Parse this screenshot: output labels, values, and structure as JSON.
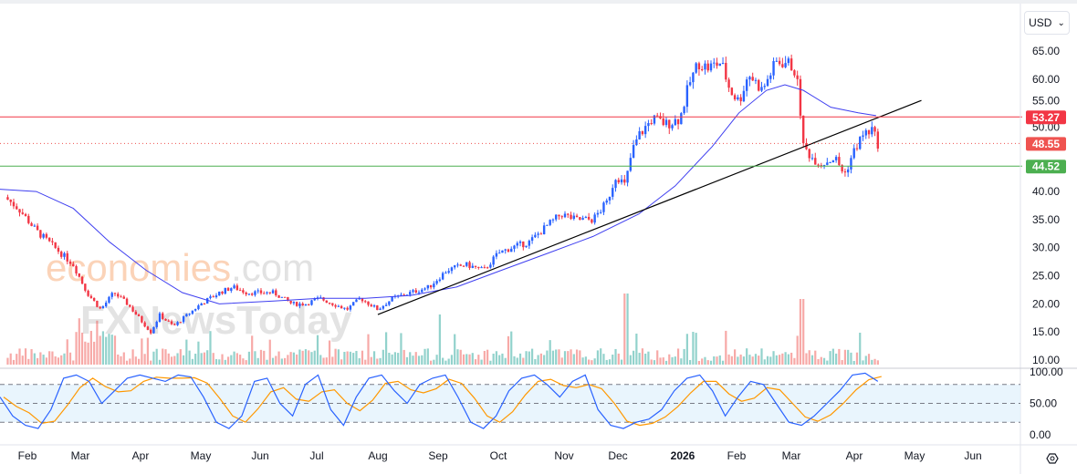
{
  "currency": {
    "label": "USD",
    "chevron": "⌄"
  },
  "watermark": {
    "line1": "economies",
    "line1b": ".com",
    "line2": "FXNewsToday"
  },
  "chart_data": {
    "type": "candlestick",
    "x_unit": "months since Feb 1 2025",
    "price_axis": {
      "ticks": [
        "65.00",
        "60.00",
        "55.00",
        "50.00",
        "40.00",
        "35.00",
        "30.00",
        "25.00",
        "20.00",
        "15.00",
        "10.00"
      ],
      "ylim": [
        10,
        65
      ]
    },
    "time_axis": {
      "labels": [
        "Feb",
        "Mar",
        "Apr",
        "May",
        "Jun",
        "Jul",
        "Aug",
        "Sep",
        "Oct",
        "Nov",
        "Dec",
        "2026",
        "Feb",
        "Mar",
        "Apr",
        "May",
        "Jun"
      ]
    },
    "close_path": [
      [
        -0.38,
        39
      ],
      [
        -0.15,
        37
      ],
      [
        0.15,
        33
      ],
      [
        0.46,
        30
      ],
      [
        0.77,
        27
      ],
      [
        1.0,
        22
      ],
      [
        1.23,
        19
      ],
      [
        1.45,
        22
      ],
      [
        1.68,
        20
      ],
      [
        1.91,
        17
      ],
      [
        2.07,
        15
      ],
      [
        2.22,
        18
      ],
      [
        2.45,
        16
      ],
      [
        2.68,
        18
      ],
      [
        2.91,
        20
      ],
      [
        3.22,
        22
      ],
      [
        3.45,
        23
      ],
      [
        3.68,
        22
      ],
      [
        3.9,
        22
      ],
      [
        4.13,
        22
      ],
      [
        4.44,
        20
      ],
      [
        4.67,
        20
      ],
      [
        4.9,
        21
      ],
      [
        5.13,
        20
      ],
      [
        5.36,
        19
      ],
      [
        5.59,
        21
      ],
      [
        5.88,
        19
      ],
      [
        6.13,
        21
      ],
      [
        6.43,
        22
      ],
      [
        6.74,
        23
      ],
      [
        7.04,
        26
      ],
      [
        7.35,
        27
      ],
      [
        7.66,
        26
      ],
      [
        7.9,
        29
      ],
      [
        8.12,
        30
      ],
      [
        8.42,
        31
      ],
      [
        8.73,
        34
      ],
      [
        8.96,
        36
      ],
      [
        9.19,
        35
      ],
      [
        9.49,
        35
      ],
      [
        9.72,
        38
      ],
      [
        9.88,
        43
      ],
      [
        10.03,
        41
      ],
      [
        10.14,
        47
      ],
      [
        10.26,
        50
      ],
      [
        10.49,
        53
      ],
      [
        10.72,
        52
      ],
      [
        10.95,
        53
      ],
      [
        11.1,
        59
      ],
      [
        11.26,
        63
      ],
      [
        11.41,
        62
      ],
      [
        11.64,
        63
      ],
      [
        11.79,
        58
      ],
      [
        11.94,
        56
      ],
      [
        12.1,
        61
      ],
      [
        12.33,
        58
      ],
      [
        12.56,
        63
      ],
      [
        12.74,
        63
      ],
      [
        12.86,
        62
      ],
      [
        12.94,
        58
      ],
      [
        13.02,
        48
      ],
      [
        13.17,
        46
      ],
      [
        13.32,
        45
      ],
      [
        13.55,
        46
      ],
      [
        13.71,
        43
      ],
      [
        13.86,
        47
      ],
      [
        14.01,
        50
      ],
      [
        14.17,
        51
      ],
      [
        14.27,
        48.55
      ]
    ],
    "moving_average": [
      [
        -0.46,
        40.4
      ],
      [
        0.15,
        40
      ],
      [
        0.77,
        37
      ],
      [
        1.38,
        31
      ],
      [
        1.99,
        26
      ],
      [
        2.6,
        22
      ],
      [
        3.22,
        20
      ],
      [
        4.13,
        20.5
      ],
      [
        4.9,
        21
      ],
      [
        5.67,
        21
      ],
      [
        6.43,
        21.5
      ],
      [
        7.2,
        23
      ],
      [
        7.96,
        26
      ],
      [
        8.73,
        29
      ],
      [
        9.49,
        32
      ],
      [
        10.26,
        36
      ],
      [
        10.87,
        41
      ],
      [
        11.49,
        48
      ],
      [
        11.94,
        54
      ],
      [
        12.4,
        58
      ],
      [
        12.71,
        59
      ],
      [
        13.02,
        58
      ],
      [
        13.48,
        55
      ],
      [
        13.94,
        54
      ],
      [
        14.24,
        53.5
      ]
    ],
    "trendline": [
      [
        5.88,
        18.1
      ],
      [
        15.0,
        56.2
      ]
    ],
    "levels": [
      {
        "label": "53.27",
        "value": 53.27,
        "color": "#f23645",
        "style": "solid"
      },
      {
        "label": "48.55",
        "value": 48.55,
        "color": "#ef5350",
        "style": "dotted"
      },
      {
        "label": "44.52",
        "value": 44.52,
        "color": "#4caf50",
        "style": "solid"
      }
    ],
    "stochastic": {
      "ticks": [
        "100.00",
        "50.00",
        "0.00"
      ],
      "bands": [
        20,
        50,
        80
      ],
      "k": [
        60,
        30,
        15,
        10,
        40,
        90,
        95,
        85,
        50,
        70,
        90,
        95,
        90,
        85,
        95,
        92,
        60,
        20,
        10,
        30,
        85,
        90,
        50,
        30,
        80,
        95,
        40,
        15,
        60,
        90,
        95,
        70,
        50,
        80,
        90,
        95,
        60,
        20,
        10,
        30,
        70,
        90,
        95,
        80,
        60,
        85,
        95,
        40,
        15,
        10,
        20,
        25,
        40,
        70,
        90,
        95,
        70,
        30,
        60,
        85,
        80,
        50,
        20,
        15,
        30,
        50,
        70,
        95,
        98,
        85
      ]
    }
  },
  "colors": {
    "up": "#2962ff",
    "down": "#f23645",
    "ma": "#3f3ff0",
    "k": "#2962ff",
    "d": "#ff9800"
  }
}
